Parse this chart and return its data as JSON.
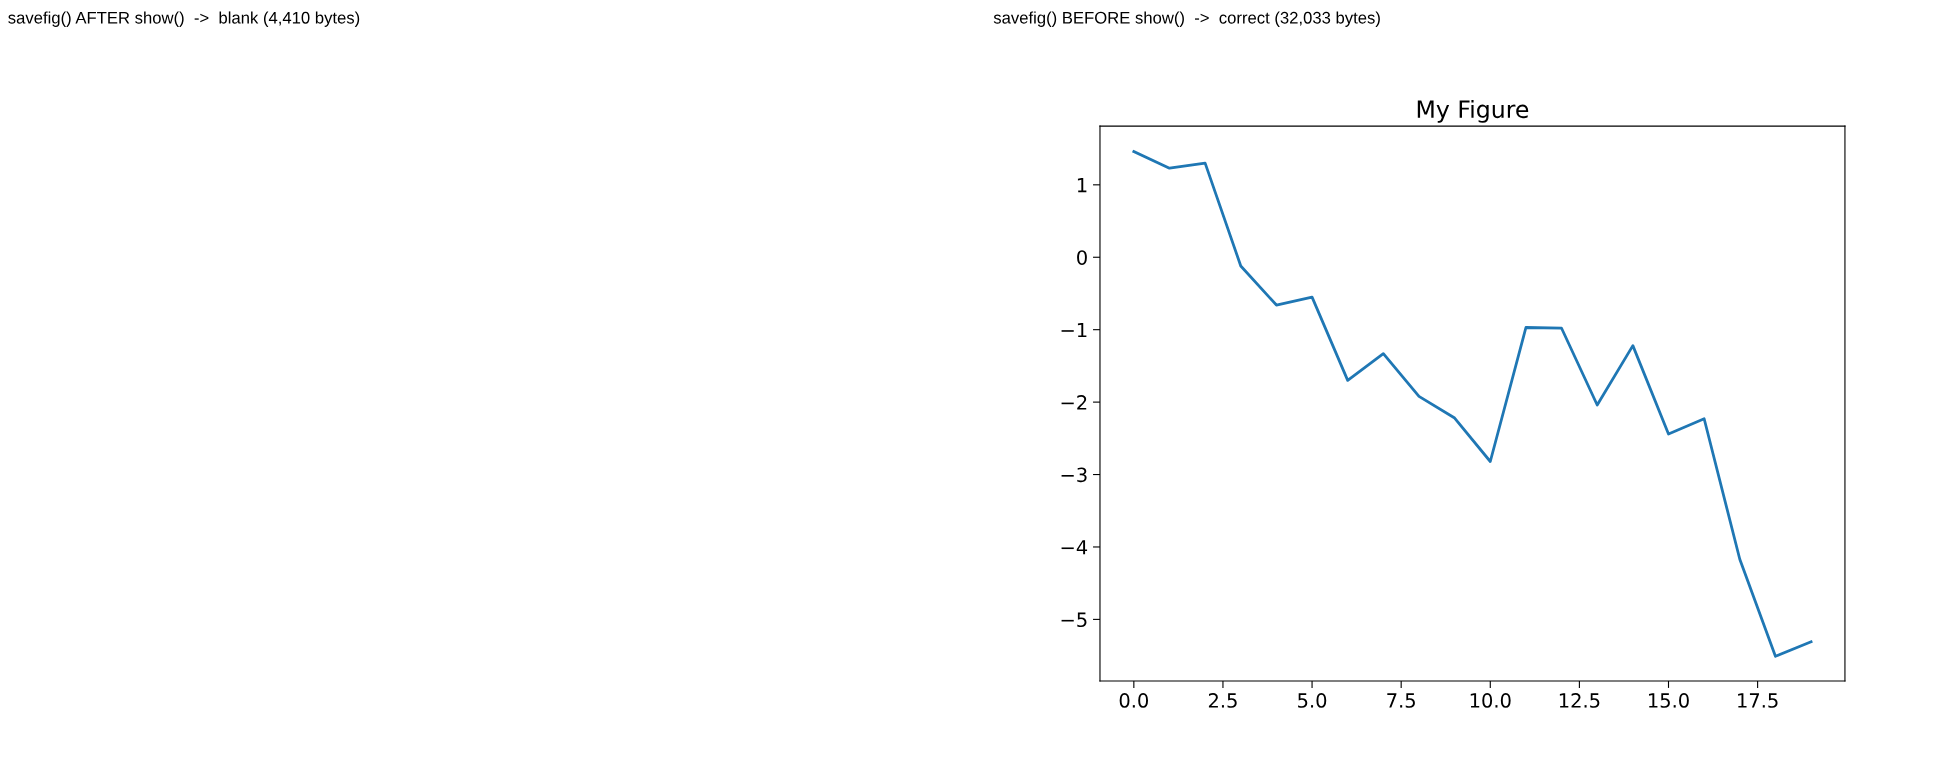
{
  "chart_data": [
    {
      "type": "other",
      "title": "savefig() AFTER show()  ->  blank (4,410 bytes)"
    },
    {
      "type": "line",
      "title": "My Figure",
      "annotations": [
        "savefig() BEFORE show()  ->  correct (32,033 bytes)"
      ],
      "x": [
        0,
        1,
        2,
        3,
        4,
        5,
        6,
        7,
        8,
        9,
        10,
        11,
        12,
        13,
        14,
        15,
        16,
        17,
        18,
        19
      ],
      "series": [
        {
          "color": "#1f77b4",
          "values": [
            1.46,
            1.23,
            1.3,
            -0.12,
            -0.66,
            -0.55,
            -1.7,
            -1.33,
            -1.92,
            -2.22,
            -2.82,
            -0.97,
            -0.98,
            -2.04,
            -1.22,
            -2.44,
            -2.23,
            -4.17,
            -5.51,
            -5.31
          ]
        }
      ],
      "xlim": [
        -0.95,
        19.95
      ],
      "ylim": [
        -5.85,
        1.81
      ],
      "xticks": [
        {
          "value": 0,
          "label": "0.0"
        },
        {
          "value": 2.5,
          "label": "2.5"
        },
        {
          "value": 5,
          "label": "5.0"
        },
        {
          "value": 7.5,
          "label": "7.5"
        },
        {
          "value": 10,
          "label": "10.0"
        },
        {
          "value": 12.5,
          "label": "12.5"
        },
        {
          "value": 15,
          "label": "15.0"
        },
        {
          "value": 17.5,
          "label": "17.5"
        }
      ],
      "yticks": [
        {
          "value": -5,
          "label": "−5"
        },
        {
          "value": -4,
          "label": "−4"
        },
        {
          "value": -3,
          "label": "−3"
        },
        {
          "value": -2,
          "label": "−2"
        },
        {
          "value": -1,
          "label": "−1"
        },
        0,
        1
      ],
      "grid": false,
      "legend": false,
      "marker": "none",
      "line_style": "solid"
    }
  ]
}
